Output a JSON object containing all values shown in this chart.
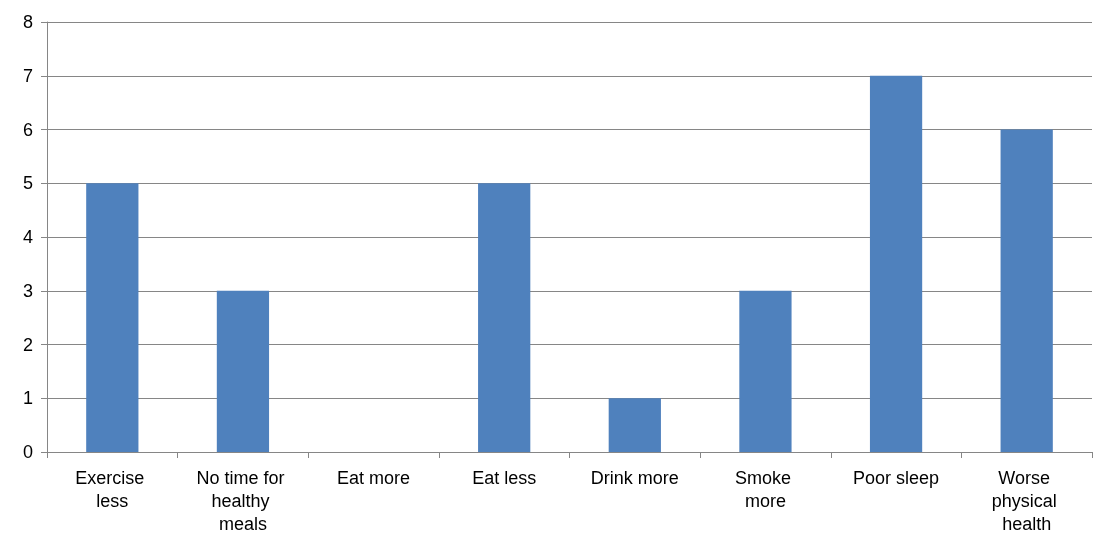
{
  "chart_data": {
    "type": "bar",
    "categories": [
      "Exercise less",
      "No time for healthy meals",
      "Eat more",
      "Eat less",
      "Drink more",
      "Smoke more",
      "Poor sleep",
      "Worse physical health"
    ],
    "values": [
      5,
      3,
      0,
      5,
      1,
      3,
      7,
      6
    ],
    "color": "#4f81bd",
    "ylim": [
      0,
      8
    ],
    "yticks": [
      0,
      1,
      2,
      3,
      4,
      5,
      6,
      7,
      8
    ],
    "grid": "y"
  }
}
